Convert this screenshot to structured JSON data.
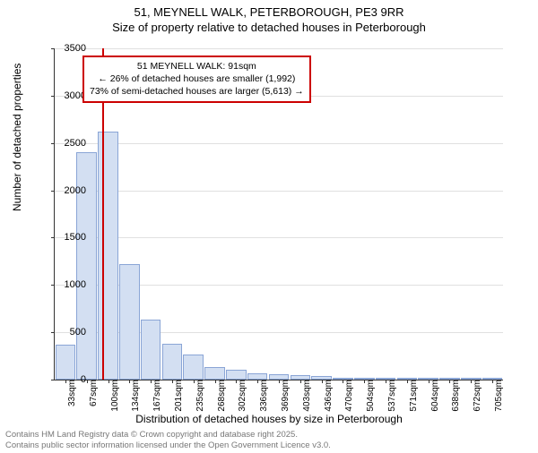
{
  "title": {
    "line1": "51, MEYNELL WALK, PETERBOROUGH, PE3 9RR",
    "line2": "Size of property relative to detached houses in Peterborough"
  },
  "chart": {
    "type": "histogram",
    "ylabel": "Number of detached properties",
    "xlabel": "Distribution of detached houses by size in Peterborough",
    "ylim": [
      0,
      3500
    ],
    "ytick_step": 500,
    "yticks": [
      0,
      500,
      1000,
      1500,
      2000,
      2500,
      3000,
      3500
    ],
    "bar_fill": "#d3dff2",
    "bar_stroke": "#8aa5d6",
    "grid_color": "#e0e0e0",
    "background_color": "#ffffff",
    "bar_width": 0.95,
    "categories": [
      "33sqm",
      "67sqm",
      "100sqm",
      "134sqm",
      "167sqm",
      "201sqm",
      "235sqm",
      "268sqm",
      "302sqm",
      "336sqm",
      "369sqm",
      "403sqm",
      "436sqm",
      "470sqm",
      "504sqm",
      "537sqm",
      "571sqm",
      "604sqm",
      "638sqm",
      "672sqm",
      "705sqm"
    ],
    "values": [
      370,
      2400,
      2620,
      1220,
      630,
      380,
      265,
      130,
      105,
      70,
      55,
      45,
      35,
      20,
      12,
      10,
      8,
      6,
      5,
      4,
      3
    ],
    "reference_line": {
      "color": "#cc0000",
      "position_sqm": 91,
      "width": 2
    },
    "annotation": {
      "border_color": "#cc0000",
      "line1": "51 MEYNELL WALK: 91sqm",
      "line2": "← 26% of detached houses are smaller (1,992)",
      "line3": "73% of semi-detached houses are larger (5,613) →"
    }
  },
  "footer": {
    "line1": "Contains HM Land Registry data © Crown copyright and database right 2025.",
    "line2": "Contains public sector information licensed under the Open Government Licence v3.0."
  }
}
